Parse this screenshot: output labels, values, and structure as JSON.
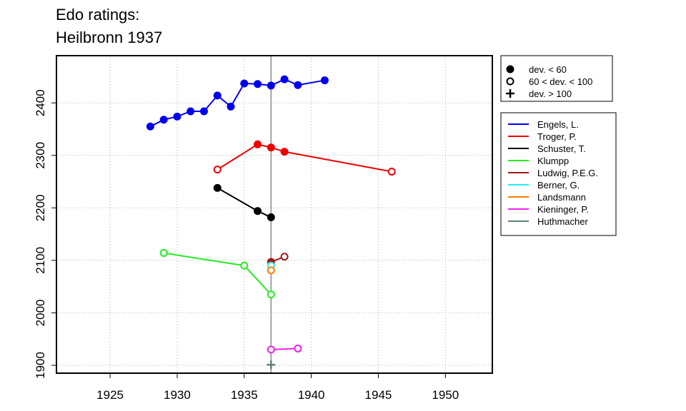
{
  "chart_data": {
    "type": "line",
    "title": [
      "Edo ratings:",
      "Heilbronn 1937"
    ],
    "xlabel": "",
    "ylabel": "",
    "xlim": [
      1921,
      1953.5
    ],
    "ylim": [
      1885,
      2490
    ],
    "xticks": [
      1925,
      1930,
      1935,
      1940,
      1945,
      1950
    ],
    "yticks": [
      1900,
      2000,
      2100,
      2200,
      2300,
      2400
    ],
    "grid": true,
    "reference_line_x": 1937,
    "marker_legend": [
      {
        "label": "dev. < 60",
        "marker": "filled"
      },
      {
        "label": "60 < dev. < 100",
        "marker": "open"
      },
      {
        "label": "dev. > 100",
        "marker": "plus"
      }
    ],
    "legend_position": "outside-right",
    "series": [
      {
        "name": "Engels, L.",
        "color": "#0000ee",
        "points": [
          {
            "x": 1928,
            "y": 2355,
            "m": "filled"
          },
          {
            "x": 1929,
            "y": 2368,
            "m": "filled"
          },
          {
            "x": 1930,
            "y": 2374,
            "m": "filled"
          },
          {
            "x": 1931,
            "y": 2384,
            "m": "filled"
          },
          {
            "x": 1932,
            "y": 2384,
            "m": "filled"
          },
          {
            "x": 1933,
            "y": 2414,
            "m": "filled"
          },
          {
            "x": 1934,
            "y": 2393,
            "m": "filled"
          },
          {
            "x": 1935,
            "y": 2437,
            "m": "filled"
          },
          {
            "x": 1936,
            "y": 2436,
            "m": "filled"
          },
          {
            "x": 1937,
            "y": 2433,
            "m": "filled"
          },
          {
            "x": 1938,
            "y": 2445,
            "m": "filled"
          },
          {
            "x": 1939,
            "y": 2434,
            "m": "filled"
          },
          {
            "x": 1941,
            "y": 2443,
            "m": "filled"
          }
        ]
      },
      {
        "name": "Troger, P.",
        "color": "#ee0000",
        "points": [
          {
            "x": 1933,
            "y": 2273,
            "m": "open"
          },
          {
            "x": 1936,
            "y": 2321,
            "m": "filled"
          },
          {
            "x": 1937,
            "y": 2315,
            "m": "filled"
          },
          {
            "x": 1938,
            "y": 2307,
            "m": "filled"
          },
          {
            "x": 1946,
            "y": 2269,
            "m": "open"
          }
        ]
      },
      {
        "name": "Schuster, T.",
        "color": "#000000",
        "points": [
          {
            "x": 1933,
            "y": 2238,
            "m": "filled"
          },
          {
            "x": 1936,
            "y": 2194,
            "m": "filled"
          },
          {
            "x": 1937,
            "y": 2182,
            "m": "filled"
          }
        ]
      },
      {
        "name": "Klumpp",
        "color": "#22ee22",
        "points": [
          {
            "x": 1929,
            "y": 2114,
            "m": "open"
          },
          {
            "x": 1935,
            "y": 2090,
            "m": "open"
          },
          {
            "x": 1937,
            "y": 2035,
            "m": "open"
          }
        ]
      },
      {
        "name": "Ludwig, P.E.G.",
        "color": "#a01818",
        "points": [
          {
            "x": 1937,
            "y": 2097,
            "m": "filled"
          },
          {
            "x": 1938,
            "y": 2107,
            "m": "open"
          }
        ]
      },
      {
        "name": "Berner, G.",
        "color": "#22eeee",
        "points": [
          {
            "x": 1937,
            "y": 2090,
            "m": "open"
          }
        ]
      },
      {
        "name": "Landsmann",
        "color": "#ff7f00",
        "points": [
          {
            "x": 1937,
            "y": 2081,
            "m": "open"
          }
        ]
      },
      {
        "name": "Kieninger, P.",
        "color": "#ee22ee",
        "points": [
          {
            "x": 1937,
            "y": 1930,
            "m": "open"
          },
          {
            "x": 1939,
            "y": 1932,
            "m": "open"
          }
        ]
      },
      {
        "name": "Huthmacher",
        "color": "#5f7f7f",
        "points": [
          {
            "x": 1937,
            "y": 1901,
            "m": "plus"
          }
        ]
      }
    ]
  }
}
